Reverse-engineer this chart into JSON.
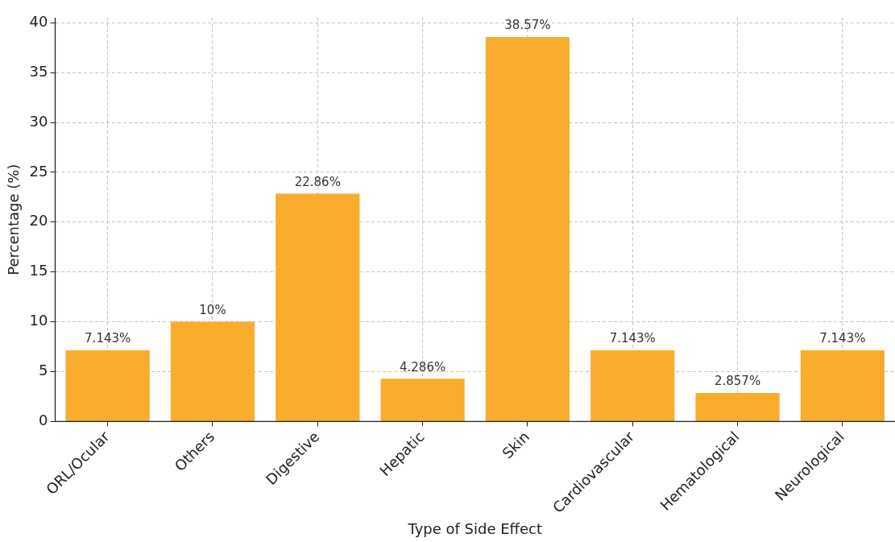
{
  "chart_data": {
    "type": "bar",
    "xlabel": "Type of Side Effect",
    "ylabel": "Percentage (%)",
    "categories": [
      "ORL/Ocular",
      "Others",
      "Digestive",
      "Hepatic",
      "Skin",
      "Cardiovascular",
      "Hematological",
      "Neurological"
    ],
    "values": [
      7.143,
      10,
      22.86,
      4.286,
      38.57,
      7.143,
      2.857,
      7.143
    ],
    "value_labels": [
      "7.143%",
      "10%",
      "22.86%",
      "4.286%",
      "38.57%",
      "7.143%",
      "2.857%",
      "7.143%"
    ],
    "color": "#f9ac2e",
    "ylim": [
      0,
      40.5
    ],
    "yticks": [
      0,
      5,
      10,
      15,
      20,
      25,
      30,
      35,
      40
    ],
    "grid": true,
    "legend": false
  }
}
